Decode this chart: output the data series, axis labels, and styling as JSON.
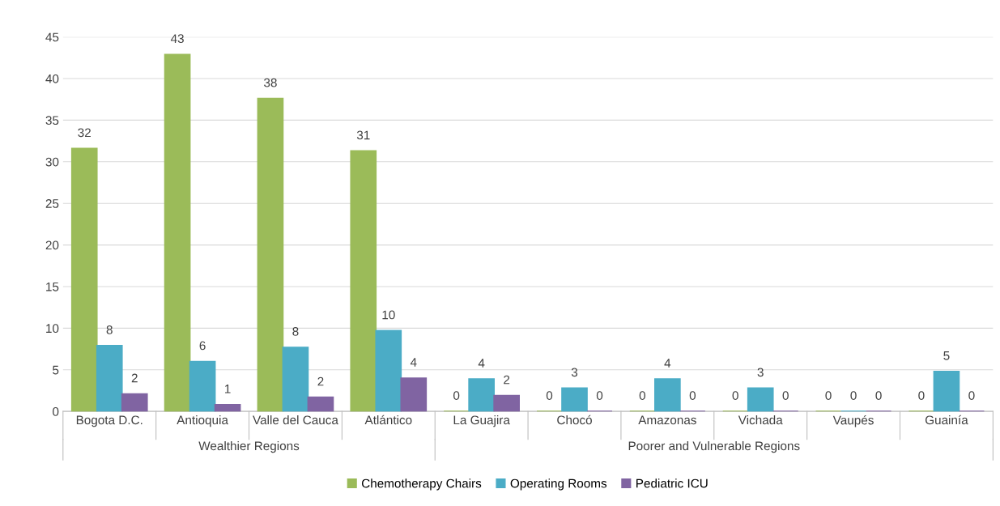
{
  "chart_data": {
    "type": "bar",
    "categories": [
      "Bogota D.C.",
      "Antioquia",
      "Valle del Cauca",
      "Atlántico",
      "La Guajira",
      "Chocó",
      "Amazonas",
      "Vichada",
      "Vaupés",
      "Guainía"
    ],
    "series": [
      {
        "name": "Chemotherapy Chairs",
        "color": "#9bbb59",
        "values": [
          31.6,
          42.9,
          37.6,
          31.3,
          0,
          0,
          0,
          0,
          0,
          0
        ],
        "value_labels": [
          "32",
          "43",
          "38",
          "31",
          "0",
          "0",
          "0",
          "0",
          "0",
          "0"
        ]
      },
      {
        "name": "Operating Rooms",
        "color": "#4bacc6",
        "values": [
          7.9,
          6.0,
          7.7,
          9.7,
          3.9,
          2.8,
          3.9,
          2.8,
          0,
          4.8
        ],
        "value_labels": [
          "8",
          "6",
          "8",
          "10",
          "4",
          "3",
          "4",
          "3",
          "0",
          "5"
        ]
      },
      {
        "name": "Pediatric ICU",
        "color": "#8064a2",
        "values": [
          2.1,
          0.8,
          1.7,
          4.0,
          1.9,
          0,
          0,
          0,
          0,
          0
        ],
        "value_labels": [
          "2",
          "1",
          "2",
          "4",
          "2",
          "0",
          "0",
          "0",
          "0",
          "0"
        ]
      }
    ],
    "annotations": [
      "Wealthier Regions",
      "Poorer and Vulnerable Regions"
    ],
    "ylim": [
      0,
      45
    ],
    "yticks": [
      0,
      5,
      10,
      15,
      20,
      25,
      30,
      35,
      40,
      45
    ],
    "grid": "y",
    "legend": "bottom"
  }
}
